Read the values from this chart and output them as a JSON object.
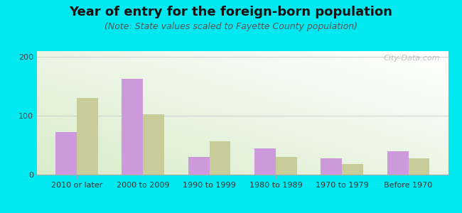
{
  "title": "Year of entry for the foreign-born population",
  "subtitle": "(Note: State values scaled to Fayette County population)",
  "categories": [
    "2010 or later",
    "2000 to 2009",
    "1990 to 1999",
    "1980 to 1989",
    "1970 to 1979",
    "Before 1970"
  ],
  "fayette_values": [
    72,
    163,
    30,
    45,
    28,
    40
  ],
  "indiana_values": [
    130,
    102,
    57,
    30,
    18,
    28
  ],
  "fayette_color": "#cc99dd",
  "indiana_color": "#c8cc99",
  "ylim": [
    0,
    210
  ],
  "yticks": [
    0,
    100,
    200
  ],
  "background_color": "#00e8f0",
  "title_fontsize": 13,
  "subtitle_fontsize": 9,
  "tick_fontsize": 8,
  "legend_fontsize": 9,
  "watermark": "City-Data.com"
}
